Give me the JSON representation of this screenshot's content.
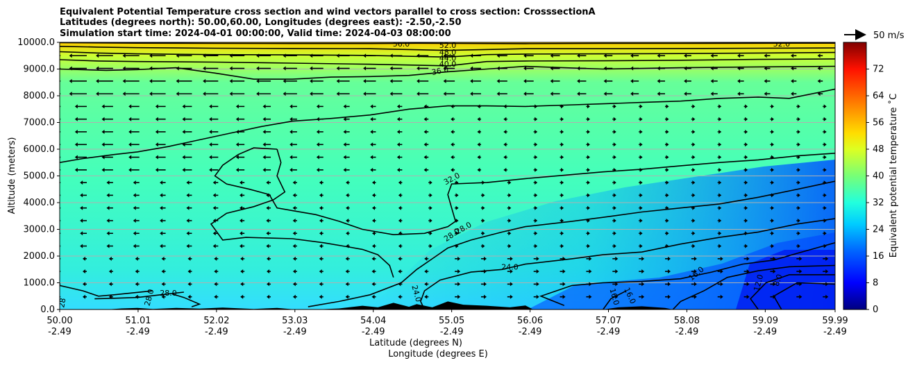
{
  "chart_data": {
    "type": "contour",
    "title_lines": [
      "Equivalent Potential Temperature cross section and wind vectors parallel to cross section: CrosssectionA",
      "Latitudes (degrees north): 50.00,60.00, Longitudes (degrees east): -2.50,-2.50",
      "Simulation start time: 2024-04-01 00:00:00, Valid time: 2024-04-03 08:00:00"
    ],
    "xlabel_line1": "Latitude (degrees N)",
    "xlabel_line2": "Longitude (degrees E)",
    "ylabel": "Altitude (meters)",
    "x_ticks": [
      {
        "lat": "50.00",
        "lon": "-2.49"
      },
      {
        "lat": "51.01",
        "lon": "-2.49"
      },
      {
        "lat": "52.02",
        "lon": "-2.49"
      },
      {
        "lat": "53.03",
        "lon": "-2.49"
      },
      {
        "lat": "54.04",
        "lon": "-2.49"
      },
      {
        "lat": "55.05",
        "lon": "-2.49"
      },
      {
        "lat": "56.06",
        "lon": "-2.49"
      },
      {
        "lat": "57.07",
        "lon": "-2.49"
      },
      {
        "lat": "58.08",
        "lon": "-2.49"
      },
      {
        "lat": "59.09",
        "lon": "-2.49"
      },
      {
        "lat": "59.99",
        "lon": "-2.49"
      }
    ],
    "y_ticks": [
      "0.0",
      "1000.0",
      "2000.0",
      "3000.0",
      "4000.0",
      "5000.0",
      "6000.0",
      "7000.0",
      "8000.0",
      "9000.0",
      "10000.0"
    ],
    "xlim": [
      50.0,
      59.99
    ],
    "ylim": [
      0,
      10000
    ],
    "grid": "horizontal",
    "colorbar": {
      "label": "Equivalent potential temperature ˚C",
      "ticks": [
        "0",
        "8",
        "16",
        "24",
        "32",
        "40",
        "48",
        "56",
        "64",
        "72"
      ],
      "range": [
        0,
        80
      ]
    },
    "quiver_key": "50 m/s",
    "contour_labels": [
      {
        "text": "56.0",
        "lat": 54.4,
        "z": 9950,
        "rot": 0
      },
      {
        "text": "52.0",
        "lat": 55.0,
        "z": 9900,
        "rot": 0
      },
      {
        "text": "52.0",
        "lat": 59.3,
        "z": 9950,
        "rot": 0
      },
      {
        "text": "48.0",
        "lat": 55.0,
        "z": 9640,
        "rot": 0
      },
      {
        "text": "44.0",
        "lat": 55.0,
        "z": 9420,
        "rot": 0
      },
      {
        "text": "40.0",
        "lat": 55.0,
        "z": 9200,
        "rot": 0
      },
      {
        "text": "36.0",
        "lat": 54.9,
        "z": 8940,
        "rot": -12
      },
      {
        "text": "32.0",
        "lat": 55.05,
        "z": 4900,
        "rot": -28
      },
      {
        "text": "28.0",
        "lat": 55.05,
        "z": 2800,
        "rot": -35
      },
      {
        "text": "28.0",
        "lat": 55.2,
        "z": 3050,
        "rot": -30
      },
      {
        "text": "24.0",
        "lat": 55.8,
        "z": 1600,
        "rot": 0
      },
      {
        "text": "24.0",
        "lat": 54.6,
        "z": 600,
        "rot": 75
      },
      {
        "text": "16.0",
        "lat": 58.2,
        "z": 1350,
        "rot": -40
      },
      {
        "text": "16.0",
        "lat": 57.15,
        "z": 480,
        "rot": 75
      },
      {
        "text": "16.0",
        "lat": 57.35,
        "z": 520,
        "rot": 65
      },
      {
        "text": "12.0",
        "lat": 59.0,
        "z": 1000,
        "rot": -75
      },
      {
        "text": "8.0",
        "lat": 59.25,
        "z": 1100,
        "rot": -70
      },
      {
        "text": "28.0",
        "lat": 51.4,
        "z": 620,
        "rot": 0
      },
      {
        "text": "28.0",
        "lat": 51.15,
        "z": 450,
        "rot": -75
      },
      {
        "text": "28",
        "lat": 50.03,
        "z": 250,
        "rot": -80
      }
    ],
    "contours": [
      {
        "level": 52,
        "points": [
          [
            50,
            9990
          ],
          [
            51,
            9970
          ],
          [
            52,
            9960
          ],
          [
            53,
            9955
          ],
          [
            54,
            9955
          ],
          [
            54.6,
            9965
          ],
          [
            55.05,
            9960
          ],
          [
            56,
            9950
          ],
          [
            57,
            9960
          ],
          [
            58,
            9960
          ],
          [
            59,
            9965
          ],
          [
            59.99,
            9970
          ]
        ]
      },
      {
        "level": 48,
        "points": [
          [
            50,
            9850
          ],
          [
            50.5,
            9820
          ],
          [
            51,
            9800
          ],
          [
            52,
            9780
          ],
          [
            53,
            9770
          ],
          [
            54,
            9760
          ],
          [
            55,
            9700
          ],
          [
            56,
            9760
          ],
          [
            57,
            9760
          ],
          [
            58,
            9770
          ],
          [
            59,
            9780
          ],
          [
            59.99,
            9790
          ]
        ]
      },
      {
        "level": 44,
        "points": [
          [
            50,
            9650
          ],
          [
            50.5,
            9600
          ],
          [
            51,
            9570
          ],
          [
            52,
            9540
          ],
          [
            53,
            9530
          ],
          [
            54,
            9510
          ],
          [
            55,
            9450
          ],
          [
            55.5,
            9540
          ],
          [
            56,
            9560
          ],
          [
            57,
            9570
          ],
          [
            58,
            9580
          ],
          [
            59,
            9600
          ],
          [
            59.99,
            9620
          ]
        ]
      },
      {
        "level": 40,
        "points": [
          [
            50,
            9350
          ],
          [
            50.5,
            9300
          ],
          [
            51,
            9280
          ],
          [
            52,
            9260
          ],
          [
            53,
            9220
          ],
          [
            54,
            9180
          ],
          [
            55,
            9120
          ],
          [
            55.5,
            9280
          ],
          [
            56,
            9300
          ],
          [
            57,
            9310
          ],
          [
            58,
            9330
          ],
          [
            59,
            9360
          ],
          [
            59.99,
            9380
          ]
        ]
      },
      {
        "level": 36,
        "points": [
          [
            50,
            9000
          ],
          [
            50.6,
            8950
          ],
          [
            51,
            8980
          ],
          [
            51.5,
            9050
          ],
          [
            52,
            8850
          ],
          [
            52.5,
            8620
          ],
          [
            53,
            8620
          ],
          [
            53.5,
            8700
          ],
          [
            54,
            8720
          ],
          [
            54.5,
            8760
          ],
          [
            55,
            8900
          ],
          [
            55.5,
            9000
          ],
          [
            56,
            9100
          ],
          [
            56.5,
            9050
          ],
          [
            57,
            9000
          ],
          [
            58,
            9050
          ],
          [
            59,
            9080
          ],
          [
            59.99,
            9100
          ]
        ]
      },
      {
        "level": 32,
        "points": [
          [
            50,
            5500
          ],
          [
            50.3,
            5650
          ],
          [
            50.7,
            5800
          ],
          [
            51,
            5900
          ],
          [
            51.4,
            6100
          ],
          [
            51.8,
            6350
          ],
          [
            52.2,
            6600
          ],
          [
            52.6,
            6850
          ],
          [
            53,
            7050
          ],
          [
            53.5,
            7150
          ],
          [
            54,
            7280
          ],
          [
            54.5,
            7500
          ],
          [
            55,
            7620
          ],
          [
            55.5,
            7620
          ],
          [
            56,
            7600
          ],
          [
            56.5,
            7650
          ],
          [
            57,
            7700
          ],
          [
            57.5,
            7750
          ],
          [
            58,
            7800
          ],
          [
            58.5,
            7900
          ],
          [
            59,
            7950
          ],
          [
            59.4,
            7900
          ],
          [
            59.99,
            8250
          ]
        ]
      },
      {
        "level": 32,
        "points": [
          [
            52.8,
            6000
          ],
          [
            52.5,
            6050
          ],
          [
            52.3,
            5800
          ],
          [
            52.1,
            5400
          ],
          [
            52.0,
            5000
          ],
          [
            52.15,
            4700
          ],
          [
            52.45,
            4500
          ],
          [
            52.7,
            4300
          ],
          [
            52.8,
            3800
          ],
          [
            53.0,
            3700
          ],
          [
            53.3,
            3550
          ],
          [
            53.6,
            3300
          ],
          [
            53.9,
            3000
          ],
          [
            54.3,
            2800
          ],
          [
            54.7,
            2850
          ],
          [
            55.0,
            3100
          ],
          [
            55.1,
            3300
          ],
          [
            55.05,
            3800
          ],
          [
            55.0,
            4300
          ],
          [
            55.05,
            4700
          ],
          [
            55.5,
            4750
          ],
          [
            56,
            4900
          ],
          [
            56.6,
            5050
          ],
          [
            57,
            5150
          ],
          [
            57.5,
            5250
          ],
          [
            58,
            5380
          ],
          [
            58.5,
            5500
          ],
          [
            59,
            5600
          ],
          [
            59.5,
            5750
          ],
          [
            59.99,
            5850
          ]
        ]
      },
      {
        "level": 32,
        "points": [
          [
            52.8,
            6000
          ],
          [
            52.85,
            5500
          ],
          [
            52.8,
            5000
          ],
          [
            52.9,
            4400
          ],
          [
            52.75,
            4100
          ],
          [
            52.5,
            3850
          ],
          [
            52.15,
            3600
          ],
          [
            51.95,
            3200
          ],
          [
            52.1,
            2600
          ],
          [
            52.4,
            2700
          ],
          [
            53.0,
            2650
          ],
          [
            53.4,
            2500
          ],
          [
            53.7,
            2350
          ],
          [
            53.9,
            2250
          ],
          [
            54.1,
            2050
          ],
          [
            54.25,
            1650
          ],
          [
            54.3,
            1200
          ]
        ]
      },
      {
        "level": 28,
        "points": [
          [
            53.2,
            100
          ],
          [
            53.6,
            300
          ],
          [
            54.0,
            550
          ],
          [
            54.4,
            1000
          ],
          [
            54.6,
            1500
          ],
          [
            54.8,
            1900
          ],
          [
            55.0,
            2300
          ],
          [
            55.3,
            2600
          ],
          [
            55.7,
            2900
          ],
          [
            56.0,
            3100
          ],
          [
            56.6,
            3300
          ],
          [
            57,
            3450
          ],
          [
            57.5,
            3650
          ],
          [
            58,
            3800
          ],
          [
            58.5,
            3950
          ],
          [
            59,
            4200
          ],
          [
            59.5,
            4500
          ],
          [
            59.99,
            4800
          ]
        ]
      },
      {
        "level": 24,
        "points": [
          [
            54.7,
            0
          ],
          [
            54.65,
            300
          ],
          [
            54.7,
            700
          ],
          [
            54.9,
            1100
          ],
          [
            55.3,
            1400
          ],
          [
            55.7,
            1500
          ],
          [
            56.0,
            1700
          ],
          [
            56.6,
            1900
          ],
          [
            57,
            2050
          ],
          [
            57.5,
            2150
          ],
          [
            58,
            2450
          ],
          [
            58.5,
            2700
          ],
          [
            59,
            2900
          ],
          [
            59.5,
            3200
          ],
          [
            59.99,
            3400
          ]
        ]
      },
      {
        "level": 24,
        "points": [
          [
            56.5,
            150
          ],
          [
            56.2,
            500
          ],
          [
            56.6,
            900
          ],
          [
            57,
            1000
          ],
          [
            57.5,
            1050
          ],
          [
            58,
            1150
          ],
          [
            58.4,
            1400
          ],
          [
            58.8,
            1700
          ],
          [
            59.2,
            1850
          ],
          [
            59.5,
            2100
          ],
          [
            59.99,
            2500
          ]
        ]
      },
      {
        "level": 20,
        "points": [
          [
            57.9,
            0
          ],
          [
            58.0,
            300
          ],
          [
            58.3,
            700
          ],
          [
            58.6,
            1200
          ],
          [
            59,
            1450
          ],
          [
            59.4,
            1600
          ],
          [
            59.99,
            1650
          ]
        ]
      },
      {
        "level": 16,
        "points": [
          [
            57.0,
            0
          ],
          [
            57.1,
            400
          ],
          [
            57.3,
            700
          ]
        ]
      },
      {
        "level": 16,
        "points": [
          [
            59.0,
            0
          ],
          [
            58.9,
            400
          ],
          [
            59.1,
            1000
          ],
          [
            59.4,
            1300
          ],
          [
            59.99,
            1300
          ]
        ]
      },
      {
        "level": 12,
        "points": [
          [
            59.3,
            0
          ],
          [
            59.2,
            500
          ],
          [
            59.5,
            1000
          ],
          [
            59.99,
            950
          ]
        ]
      },
      {
        "level": 28,
        "points": [
          [
            50,
            900
          ],
          [
            50.3,
            700
          ],
          [
            50.5,
            500
          ],
          [
            50.7,
            550
          ],
          [
            51.2,
            700
          ]
        ]
      },
      {
        "level": 28,
        "points": [
          [
            50.45,
            400
          ],
          [
            50.7,
            420
          ],
          [
            51.0,
            450
          ],
          [
            51.3,
            550
          ],
          [
            51.6,
            650
          ]
        ]
      },
      {
        "level": 28,
        "points": [
          [
            51.7,
            100
          ],
          [
            51.8,
            200
          ],
          [
            51.6,
            450
          ],
          [
            51.45,
            580
          ]
        ]
      }
    ],
    "terrain": [
      [
        50,
        0
      ],
      [
        50.6,
        0
      ],
      [
        50.8,
        40
      ],
      [
        51.0,
        60
      ],
      [
        51.2,
        20
      ],
      [
        51.5,
        60
      ],
      [
        51.8,
        30
      ],
      [
        52.1,
        70
      ],
      [
        52.5,
        20
      ],
      [
        52.8,
        60
      ],
      [
        53.0,
        10
      ],
      [
        53.3,
        0
      ],
      [
        53.6,
        40
      ],
      [
        53.9,
        140
      ],
      [
        54.1,
        80
      ],
      [
        54.3,
        250
      ],
      [
        54.5,
        100
      ],
      [
        54.6,
        200
      ],
      [
        54.8,
        80
      ],
      [
        55.0,
        300
      ],
      [
        55.2,
        180
      ],
      [
        55.5,
        140
      ],
      [
        55.8,
        80
      ],
      [
        56.0,
        150
      ],
      [
        56.1,
        0
      ],
      [
        57.0,
        0
      ],
      [
        57.2,
        80
      ],
      [
        57.5,
        120
      ],
      [
        57.8,
        60
      ],
      [
        57.9,
        0
      ],
      [
        59.99,
        0
      ]
    ]
  },
  "colors": {
    "terrain": "#000000",
    "contour": "#000000",
    "grid": "#b0b0b0"
  }
}
